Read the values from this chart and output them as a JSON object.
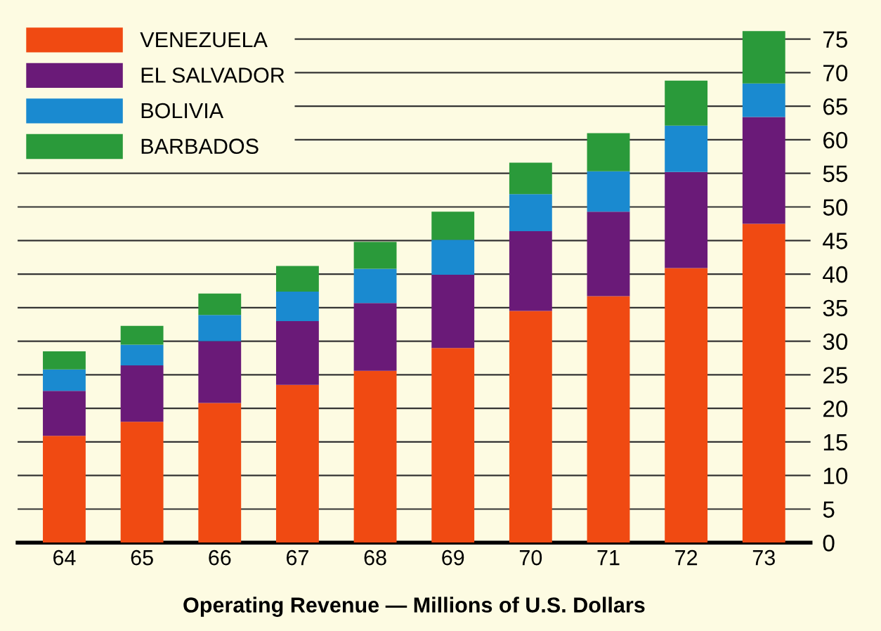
{
  "chart_data": {
    "type": "bar",
    "stacked": true,
    "xlabel": "Operating Revenue — Millions of U.S. Dollars",
    "categories": [
      "64",
      "65",
      "66",
      "67",
      "68",
      "69",
      "70",
      "71",
      "72",
      "73"
    ],
    "series": [
      {
        "name": "VENEZUELA",
        "color": "#f04a12",
        "values": [
          15.9,
          18.0,
          20.8,
          23.5,
          25.6,
          29.0,
          34.5,
          36.7,
          40.9,
          47.5
        ]
      },
      {
        "name": "EL SALVADOR",
        "color": "#6a1a78",
        "values": [
          6.7,
          8.4,
          9.2,
          9.5,
          10.1,
          10.9,
          11.9,
          12.6,
          14.3,
          15.9
        ]
      },
      {
        "name": "BOLIVIA",
        "color": "#1a8ad0",
        "values": [
          3.2,
          3.1,
          3.9,
          4.4,
          5.1,
          5.2,
          5.5,
          6.0,
          6.9,
          5.0
        ]
      },
      {
        "name": "BARBADOS",
        "color": "#2a9a3a",
        "values": [
          2.7,
          2.8,
          3.2,
          3.8,
          4.0,
          4.2,
          4.7,
          5.7,
          6.7,
          7.8
        ]
      }
    ],
    "ylim": [
      0,
      78
    ],
    "yticks": [
      0,
      5,
      10,
      15,
      20,
      25,
      30,
      35,
      40,
      45,
      50,
      55,
      60,
      65,
      70,
      75
    ],
    "grid": "y",
    "legend": "top left"
  }
}
